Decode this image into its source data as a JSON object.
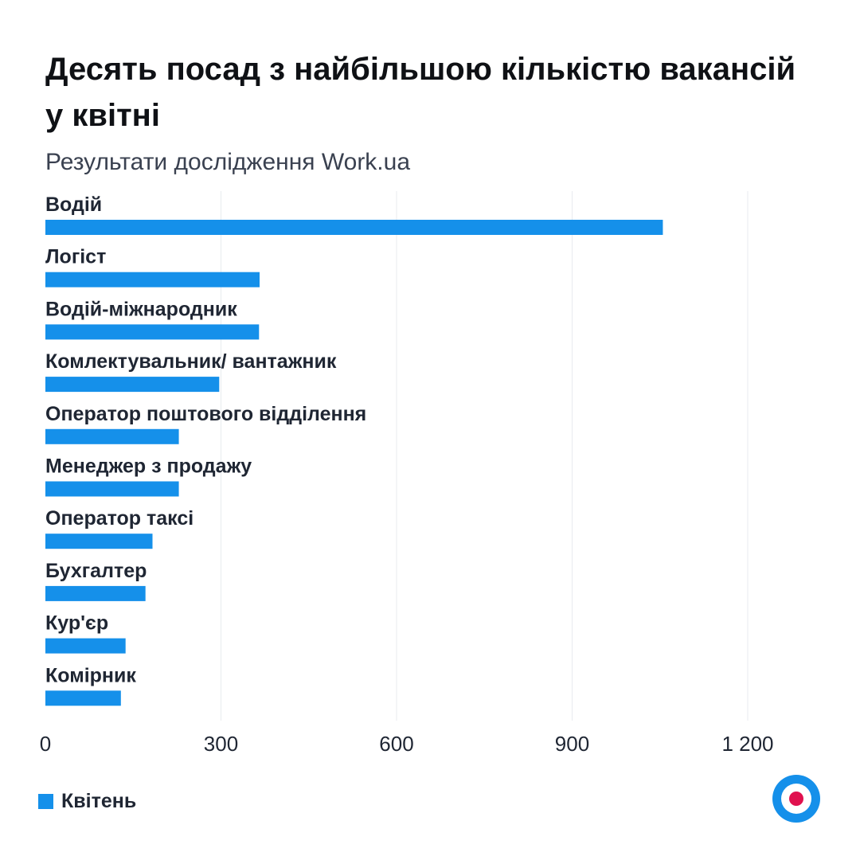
{
  "header": {
    "title": "Десять посад з найбільшою кількістю вакансій у квітні",
    "subtitle": "Результати дослідження Work.ua"
  },
  "colors": {
    "bar": "#1590ea",
    "grid": "#e8ebef",
    "logo_ring": "#1590ea",
    "logo_dot": "#e0114f"
  },
  "legend": {
    "label": "Квітень"
  },
  "logo": {
    "icon": "target-logo-icon"
  },
  "chart_data": {
    "type": "bar",
    "orientation": "horizontal",
    "categories": [
      "Водій",
      "Логіст",
      "Водій-міжнародник",
      "Комлектувальник/ вантажник",
      "Оператор поштового відділення",
      "Менеджер з продажу",
      "Оператор таксі",
      "Бухгалтер",
      "Кур'єр",
      "Комірник"
    ],
    "series": [
      {
        "name": "Квітень",
        "values": [
          1055,
          366,
          365,
          297,
          228,
          228,
          183,
          171,
          137,
          129
        ]
      }
    ],
    "xticks": [
      0,
      300,
      600,
      900,
      1200
    ],
    "xtick_labels": [
      "0",
      "300",
      "600",
      "900",
      "1 200"
    ],
    "xlim": [
      0,
      1200
    ],
    "grid": true,
    "legend_position": "bottom-left"
  }
}
